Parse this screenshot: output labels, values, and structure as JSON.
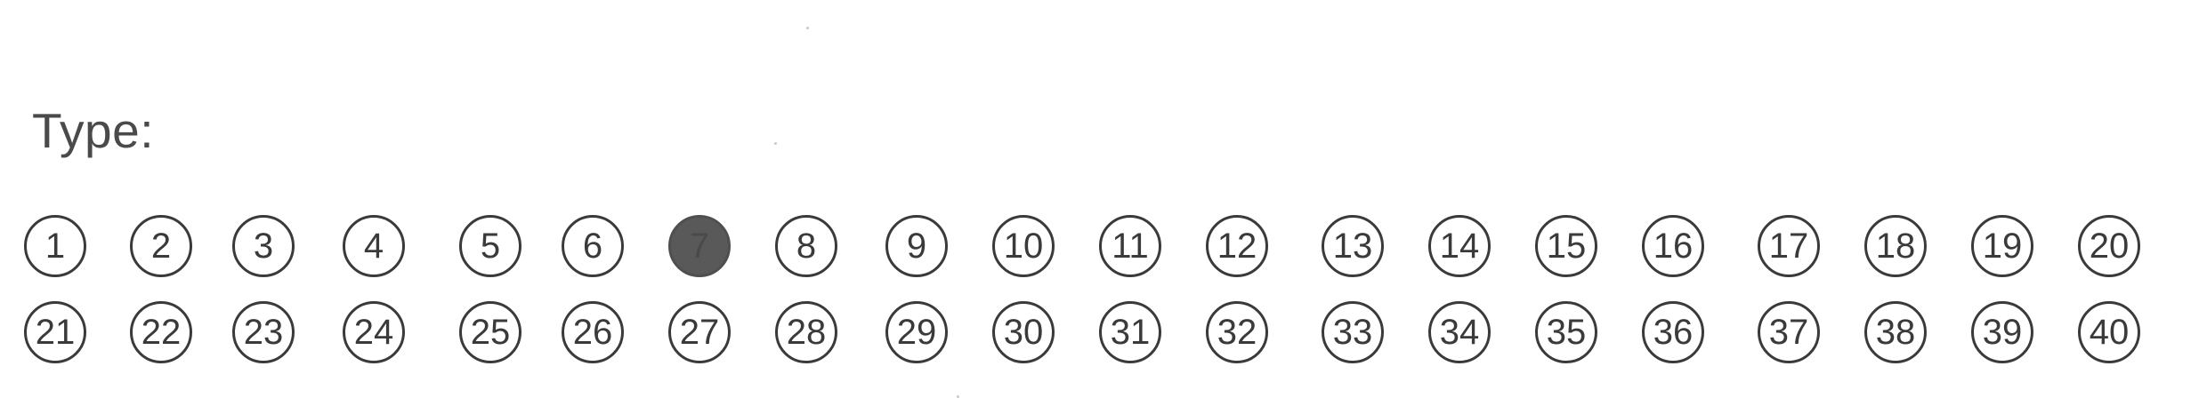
{
  "form": {
    "label": "Type:",
    "selected": 7,
    "options": [
      "1",
      "2",
      "3",
      "4",
      "5",
      "6",
      "7",
      "8",
      "9",
      "10",
      "11",
      "12",
      "13",
      "14",
      "15",
      "16",
      "17",
      "18",
      "19",
      "20",
      "21",
      "22",
      "23",
      "24",
      "25",
      "26",
      "27",
      "28",
      "29",
      "30",
      "31",
      "32",
      "33",
      "34",
      "35",
      "36",
      "37",
      "38",
      "39",
      "40"
    ]
  }
}
